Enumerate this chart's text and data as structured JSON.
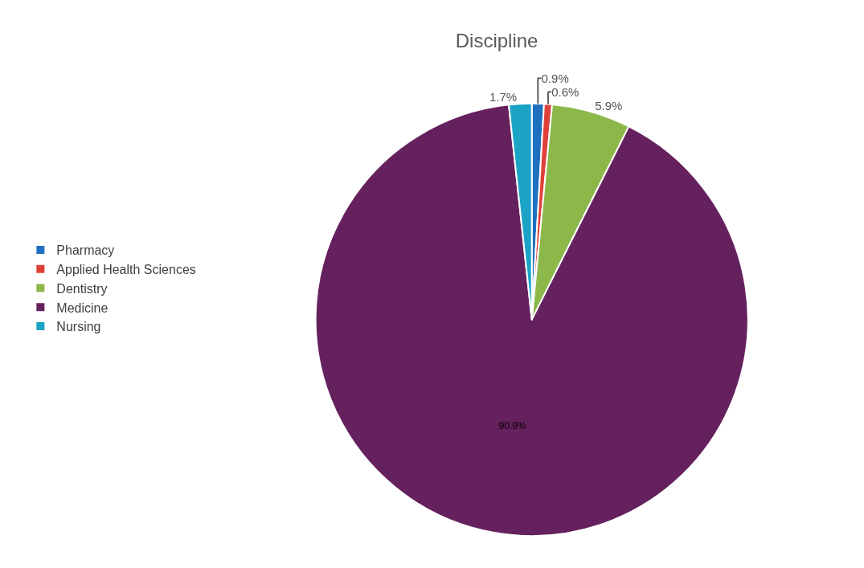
{
  "chart_data": {
    "type": "pie",
    "title": "Discipline",
    "categories": [
      "Pharmacy",
      "Applied Health Sciences",
      "Dentistry",
      "Medicine",
      "Nursing"
    ],
    "values": [
      0.9,
      0.6,
      5.9,
      90.9,
      1.7
    ],
    "value_labels": [
      "0.9%",
      "0.6%",
      "5.9%",
      "90.9%",
      "1.7%"
    ],
    "colors": [
      "#1f6fbf",
      "#e0403a",
      "#8cb84a",
      "#65215e",
      "#1ba3c6"
    ],
    "legend": "left"
  }
}
